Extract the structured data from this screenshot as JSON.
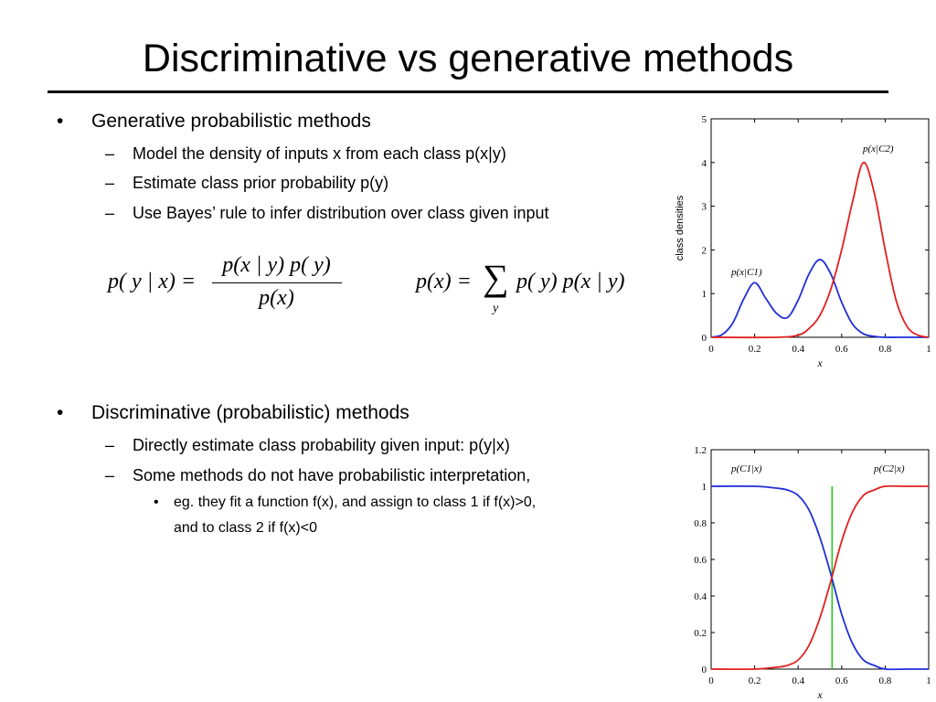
{
  "slide": {
    "title": "Discriminative vs generative methods",
    "generative": {
      "heading": "Generative probabilistic methods",
      "points": [
        "Model the density of inputs x from each class p(x|y)",
        "Estimate class prior probability p(y)",
        "Use Bayes’ rule to infer distribution over class given input"
      ]
    },
    "discriminative": {
      "heading": "Discriminative (probabilistic) methods",
      "points": [
        "Directly estimate class probability given input: p(y|x)",
        "Some methods do not have probabilistic interpretation,"
      ],
      "subpoints": [
        "eg. they fit a function f(x), and assign to class 1 if f(x)>0,",
        "and to class 2 if f(x)<0"
      ]
    },
    "formulas": {
      "bayes_lhs": "p( y | x) =",
      "bayes_num": "p(x | y) p( y)",
      "bayes_den": "p(x)",
      "marginal_lhs": "p(x) =",
      "marginal_sum": "∑",
      "marginal_sum_index": "y",
      "marginal_rhs": "p( y) p(x | y)"
    },
    "bullet_symbols": {
      "level1": "•",
      "level2": "–",
      "level3": "•"
    }
  },
  "chart_data": [
    {
      "type": "line",
      "ylabel": "class densities",
      "xlabel": "x",
      "xlim": [
        0,
        1
      ],
      "ylim": [
        0,
        5
      ],
      "xticks": [
        "0",
        "0.2",
        "0.4",
        "0.6",
        "0.8",
        "1"
      ],
      "yticks": [
        "0",
        "1",
        "2",
        "3",
        "4",
        "5"
      ],
      "series": [
        {
          "name": "p(x|C1)",
          "color": "#1f2fd8",
          "x": [
            0,
            0.05,
            0.1,
            0.15,
            0.2,
            0.25,
            0.3,
            0.35,
            0.4,
            0.45,
            0.5,
            0.55,
            0.6,
            0.65,
            0.7,
            0.75,
            0.8,
            0.9,
            1.0
          ],
          "y": [
            0.0,
            0.06,
            0.33,
            0.88,
            1.25,
            0.9,
            0.55,
            0.45,
            0.85,
            1.45,
            1.78,
            1.45,
            0.8,
            0.3,
            0.08,
            0.02,
            0.0,
            0.0,
            0.0
          ]
        },
        {
          "name": "p(x|C2)",
          "color": "#e02020",
          "x": [
            0,
            0.3,
            0.4,
            0.45,
            0.5,
            0.55,
            0.6,
            0.65,
            0.7,
            0.75,
            0.8,
            0.85,
            0.9,
            0.95,
            1.0
          ],
          "y": [
            0.0,
            0.0,
            0.05,
            0.2,
            0.5,
            1.1,
            2.0,
            3.1,
            4.0,
            3.3,
            2.0,
            0.85,
            0.25,
            0.05,
            0.0
          ]
        }
      ]
    },
    {
      "type": "line",
      "xlabel": "x",
      "xlim": [
        0,
        1
      ],
      "ylim": [
        0,
        1.2
      ],
      "xticks": [
        "0",
        "0.2",
        "0.4",
        "0.6",
        "0.8",
        "1"
      ],
      "yticks": [
        "0",
        "0.2",
        "0.4",
        "0.6",
        "0.8",
        "1",
        "1.2"
      ],
      "series": [
        {
          "name": "p(C1|x)",
          "color": "#1f2fd8",
          "x": [
            0,
            0.2,
            0.3,
            0.35,
            0.4,
            0.45,
            0.5,
            0.55,
            0.6,
            0.65,
            0.7,
            0.75,
            0.8,
            0.9,
            1.0
          ],
          "y": [
            1.0,
            1.0,
            0.99,
            0.98,
            0.95,
            0.87,
            0.72,
            0.52,
            0.3,
            0.14,
            0.05,
            0.02,
            0.0,
            0.0,
            0.0
          ]
        },
        {
          "name": "p(C2|x)",
          "color": "#e02020",
          "x": [
            0,
            0.2,
            0.3,
            0.35,
            0.4,
            0.45,
            0.5,
            0.55,
            0.6,
            0.65,
            0.7,
            0.75,
            0.8,
            0.9,
            1.0
          ],
          "y": [
            0.0,
            0.0,
            0.01,
            0.02,
            0.05,
            0.13,
            0.28,
            0.48,
            0.7,
            0.86,
            0.95,
            0.98,
            1.0,
            1.0,
            1.0
          ]
        }
      ],
      "decision_boundary": {
        "x": 0.556,
        "color": "#22cc22",
        "y_top": 1.0
      }
    }
  ]
}
